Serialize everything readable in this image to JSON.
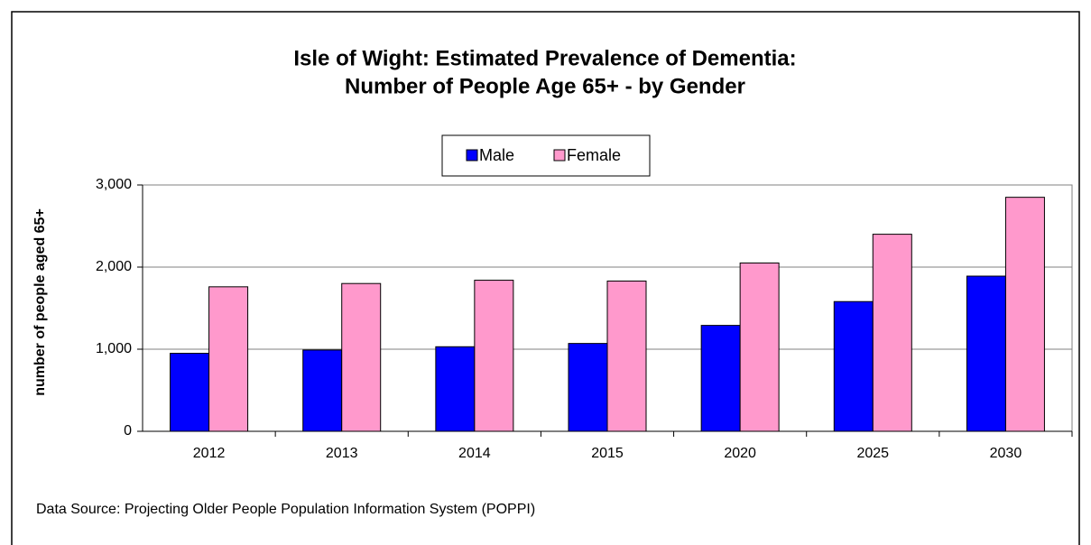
{
  "chart_data": {
    "type": "bar",
    "title": [
      "Isle of Wight: Estimated Prevalence of Dementia:",
      "Number of People Age 65+ - by Gender"
    ],
    "y_label": "number of people aged 65+",
    "source": "Data Source: Projecting Older People Population Information System (POPPI)",
    "categories": [
      "2012",
      "2013",
      "2014",
      "2015",
      "2020",
      "2025",
      "2030"
    ],
    "series": [
      {
        "name": "Male",
        "color": "#0000ff",
        "values": [
          950,
          990,
          1030,
          1070,
          1290,
          1580,
          1890
        ]
      },
      {
        "name": "Female",
        "color": "#ff99cc",
        "values": [
          1760,
          1800,
          1840,
          1830,
          2050,
          2400,
          2850
        ]
      }
    ],
    "ylim": [
      0,
      3000
    ],
    "yticks": [
      0,
      {
        "value": 1000,
        "label": "1,000"
      },
      {
        "value": 2000,
        "label": "2,000"
      },
      {
        "value": 3000,
        "label": "3,000"
      }
    ],
    "grid": true,
    "legend": "top"
  }
}
